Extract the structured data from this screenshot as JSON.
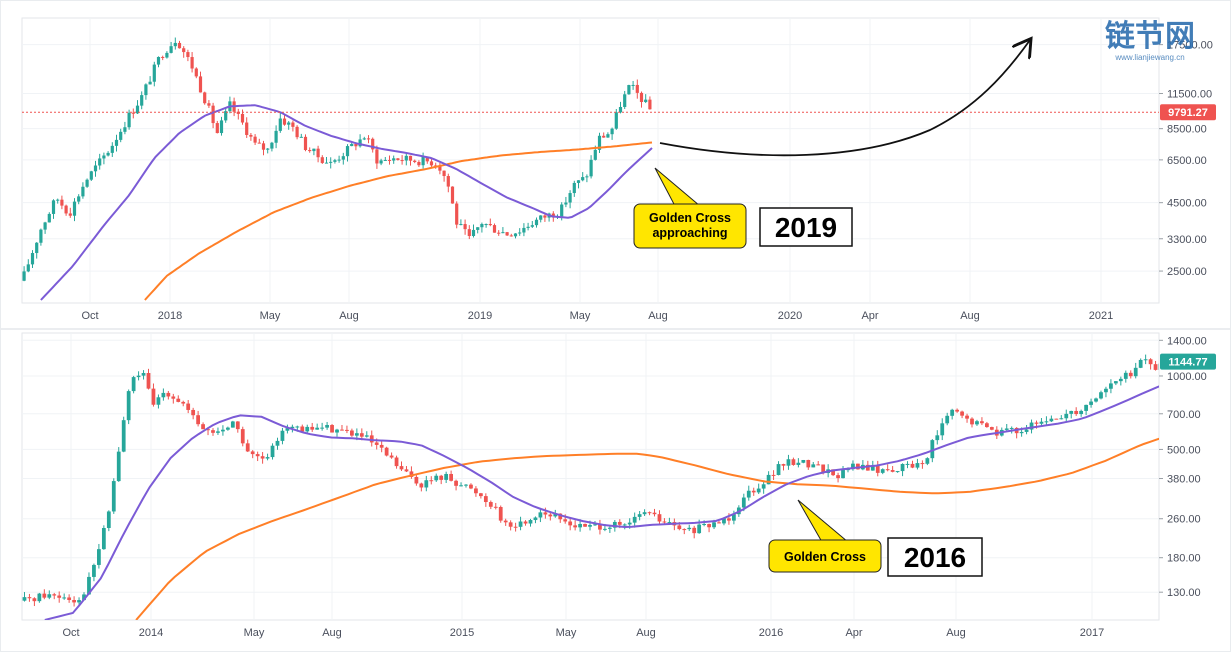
{
  "watermark": {
    "text": "链节网",
    "sub": "www.lianjiewang.cn"
  },
  "chart_data": [
    {
      "type": "candlestick",
      "scale": "log",
      "ylim": [
        1900,
        22000
      ],
      "x_tick_labels": [
        "Oct",
        "2018",
        "May",
        "Aug",
        "2019",
        "May",
        "Aug",
        "2020",
        "Apr",
        "Aug",
        "2021"
      ],
      "y_tick_labels": [
        "17500.00",
        "11500.00",
        "8500.00",
        "6500.00",
        "4500.00",
        "3300.00",
        "2500.00"
      ],
      "y_ticks": [
        17500,
        11500,
        8500,
        6500,
        4500,
        3300,
        2500
      ],
      "last_price_label": "9791.27",
      "last_price": 9791.27,
      "last_price_color": "#ef5350",
      "price_path": [
        {
          "x": 0.0,
          "y": 2300
        },
        {
          "x": 0.03,
          "y": 3600
        },
        {
          "x": 0.055,
          "y": 4700
        },
        {
          "x": 0.075,
          "y": 4100
        },
        {
          "x": 0.1,
          "y": 5400
        },
        {
          "x": 0.14,
          "y": 7200
        },
        {
          "x": 0.17,
          "y": 9500
        },
        {
          "x": 0.19,
          "y": 11200
        },
        {
          "x": 0.22,
          "y": 16000
        },
        {
          "x": 0.245,
          "y": 18500
        },
        {
          "x": 0.27,
          "y": 14500
        },
        {
          "x": 0.29,
          "y": 11000
        },
        {
          "x": 0.31,
          "y": 8200
        },
        {
          "x": 0.33,
          "y": 10400
        },
        {
          "x": 0.35,
          "y": 8900
        },
        {
          "x": 0.37,
          "y": 7400
        },
        {
          "x": 0.39,
          "y": 7100
        },
        {
          "x": 0.41,
          "y": 9300
        },
        {
          "x": 0.43,
          "y": 8600
        },
        {
          "x": 0.45,
          "y": 7300
        },
        {
          "x": 0.47,
          "y": 6700
        },
        {
          "x": 0.49,
          "y": 6300
        },
        {
          "x": 0.52,
          "y": 7200
        },
        {
          "x": 0.545,
          "y": 8000
        },
        {
          "x": 0.565,
          "y": 6400
        },
        {
          "x": 0.59,
          "y": 6600
        },
        {
          "x": 0.62,
          "y": 6500
        },
        {
          "x": 0.65,
          "y": 6400
        },
        {
          "x": 0.66,
          "y": 6300
        },
        {
          "x": 0.675,
          "y": 5400
        },
        {
          "x": 0.69,
          "y": 3800
        },
        {
          "x": 0.71,
          "y": 3300
        },
        {
          "x": 0.73,
          "y": 3800
        },
        {
          "x": 0.75,
          "y": 3600
        },
        {
          "x": 0.77,
          "y": 3450
        },
        {
          "x": 0.79,
          "y": 3550
        },
        {
          "x": 0.81,
          "y": 3800
        },
        {
          "x": 0.83,
          "y": 4000
        },
        {
          "x": 0.855,
          "y": 4200
        },
        {
          "x": 0.875,
          "y": 5200
        },
        {
          "x": 0.895,
          "y": 5600
        },
        {
          "x": 0.915,
          "y": 7800
        },
        {
          "x": 0.935,
          "y": 8300
        },
        {
          "x": 0.95,
          "y": 10500
        },
        {
          "x": 0.965,
          "y": 12300
        },
        {
          "x": 0.985,
          "y": 10900
        },
        {
          "x": 1.0,
          "y": 9791
        }
      ],
      "ma_purple": [
        {
          "x": 0.03,
          "y": 1950
        },
        {
          "x": 0.08,
          "y": 2600
        },
        {
          "x": 0.13,
          "y": 3700
        },
        {
          "x": 0.17,
          "y": 4800
        },
        {
          "x": 0.21,
          "y": 6600
        },
        {
          "x": 0.25,
          "y": 8200
        },
        {
          "x": 0.29,
          "y": 9500
        },
        {
          "x": 0.33,
          "y": 10300
        },
        {
          "x": 0.37,
          "y": 10400
        },
        {
          "x": 0.41,
          "y": 9800
        },
        {
          "x": 0.45,
          "y": 8700
        },
        {
          "x": 0.49,
          "y": 8000
        },
        {
          "x": 0.53,
          "y": 7500
        },
        {
          "x": 0.57,
          "y": 7150
        },
        {
          "x": 0.61,
          "y": 6900
        },
        {
          "x": 0.65,
          "y": 6600
        },
        {
          "x": 0.69,
          "y": 6000
        },
        {
          "x": 0.73,
          "y": 5300
        },
        {
          "x": 0.77,
          "y": 4700
        },
        {
          "x": 0.81,
          "y": 4300
        },
        {
          "x": 0.84,
          "y": 4000
        },
        {
          "x": 0.87,
          "y": 3950
        },
        {
          "x": 0.9,
          "y": 4300
        },
        {
          "x": 0.93,
          "y": 5000
        },
        {
          "x": 0.96,
          "y": 5900
        },
        {
          "x": 1.0,
          "y": 7200
        }
      ],
      "ma_orange": [
        {
          "x": 0.195,
          "y": 1950
        },
        {
          "x": 0.23,
          "y": 2400
        },
        {
          "x": 0.28,
          "y": 2900
        },
        {
          "x": 0.34,
          "y": 3500
        },
        {
          "x": 0.4,
          "y": 4150
        },
        {
          "x": 0.46,
          "y": 4700
        },
        {
          "x": 0.52,
          "y": 5200
        },
        {
          "x": 0.58,
          "y": 5650
        },
        {
          "x": 0.64,
          "y": 6000
        },
        {
          "x": 0.7,
          "y": 6450
        },
        {
          "x": 0.76,
          "y": 6750
        },
        {
          "x": 0.82,
          "y": 6950
        },
        {
          "x": 0.88,
          "y": 7100
        },
        {
          "x": 0.94,
          "y": 7300
        },
        {
          "x": 1.0,
          "y": 7550
        }
      ],
      "annotation": "Golden Cross approaching",
      "year_label": "2019"
    },
    {
      "type": "candlestick",
      "scale": "log",
      "ylim": [
        100,
        1500
      ],
      "x_tick_labels": [
        "Oct",
        "2014",
        "May",
        "Aug",
        "2015",
        "May",
        "Aug",
        "2016",
        "Apr",
        "Aug",
        "2017"
      ],
      "y_tick_labels": [
        "1400.00",
        "1000.00",
        "700.00",
        "500.00",
        "380.00",
        "260.00",
        "180.00",
        "130.00"
      ],
      "y_ticks": [
        1400,
        1000,
        700,
        500,
        380,
        260,
        180,
        130
      ],
      "last_price_label": "1144.77",
      "last_price": 1144.77,
      "last_price_color": "#26a69a",
      "price_path": [
        {
          "x": 0.0,
          "y": 120
        },
        {
          "x": 0.02,
          "y": 127
        },
        {
          "x": 0.04,
          "y": 125
        },
        {
          "x": 0.05,
          "y": 120
        },
        {
          "x": 0.06,
          "y": 150
        },
        {
          "x": 0.075,
          "y": 260
        },
        {
          "x": 0.085,
          "y": 500
        },
        {
          "x": 0.095,
          "y": 950
        },
        {
          "x": 0.105,
          "y": 1050
        },
        {
          "x": 0.115,
          "y": 750
        },
        {
          "x": 0.125,
          "y": 880
        },
        {
          "x": 0.14,
          "y": 780
        },
        {
          "x": 0.155,
          "y": 620
        },
        {
          "x": 0.17,
          "y": 580
        },
        {
          "x": 0.185,
          "y": 650
        },
        {
          "x": 0.2,
          "y": 470
        },
        {
          "x": 0.215,
          "y": 450
        },
        {
          "x": 0.23,
          "y": 640
        },
        {
          "x": 0.245,
          "y": 590
        },
        {
          "x": 0.26,
          "y": 620
        },
        {
          "x": 0.28,
          "y": 600
        },
        {
          "x": 0.3,
          "y": 560
        },
        {
          "x": 0.32,
          "y": 470
        },
        {
          "x": 0.335,
          "y": 400
        },
        {
          "x": 0.35,
          "y": 360
        },
        {
          "x": 0.37,
          "y": 390
        },
        {
          "x": 0.385,
          "y": 360
        },
        {
          "x": 0.4,
          "y": 330
        },
        {
          "x": 0.415,
          "y": 290
        },
        {
          "x": 0.425,
          "y": 240
        },
        {
          "x": 0.44,
          "y": 250
        },
        {
          "x": 0.455,
          "y": 280
        },
        {
          "x": 0.47,
          "y": 260
        },
        {
          "x": 0.49,
          "y": 240
        },
        {
          "x": 0.51,
          "y": 245
        },
        {
          "x": 0.53,
          "y": 240
        },
        {
          "x": 0.545,
          "y": 280
        },
        {
          "x": 0.56,
          "y": 255
        },
        {
          "x": 0.58,
          "y": 230
        },
        {
          "x": 0.6,
          "y": 240
        },
        {
          "x": 0.62,
          "y": 265
        },
        {
          "x": 0.635,
          "y": 330
        },
        {
          "x": 0.65,
          "y": 370
        },
        {
          "x": 0.665,
          "y": 430
        },
        {
          "x": 0.68,
          "y": 450
        },
        {
          "x": 0.7,
          "y": 420
        },
        {
          "x": 0.715,
          "y": 390
        },
        {
          "x": 0.73,
          "y": 430
        },
        {
          "x": 0.75,
          "y": 410
        },
        {
          "x": 0.77,
          "y": 420
        },
        {
          "x": 0.79,
          "y": 440
        },
        {
          "x": 0.8,
          "y": 560
        },
        {
          "x": 0.815,
          "y": 720
        },
        {
          "x": 0.83,
          "y": 650
        },
        {
          "x": 0.845,
          "y": 620
        },
        {
          "x": 0.855,
          "y": 590
        },
        {
          "x": 0.87,
          "y": 600
        },
        {
          "x": 0.885,
          "y": 620
        },
        {
          "x": 0.9,
          "y": 650
        },
        {
          "x": 0.915,
          "y": 700
        },
        {
          "x": 0.93,
          "y": 740
        },
        {
          "x": 0.945,
          "y": 860
        },
        {
          "x": 0.96,
          "y": 960
        },
        {
          "x": 0.975,
          "y": 1050
        },
        {
          "x": 0.985,
          "y": 1180
        },
        {
          "x": 0.995,
          "y": 1050
        },
        {
          "x": 1.0,
          "y": 1145
        }
      ],
      "ma_purple": [
        {
          "x": 0.02,
          "y": 100
        },
        {
          "x": 0.045,
          "y": 107
        },
        {
          "x": 0.07,
          "y": 150
        },
        {
          "x": 0.09,
          "y": 230
        },
        {
          "x": 0.11,
          "y": 340
        },
        {
          "x": 0.13,
          "y": 460
        },
        {
          "x": 0.15,
          "y": 560
        },
        {
          "x": 0.17,
          "y": 640
        },
        {
          "x": 0.19,
          "y": 690
        },
        {
          "x": 0.21,
          "y": 680
        },
        {
          "x": 0.23,
          "y": 620
        },
        {
          "x": 0.25,
          "y": 580
        },
        {
          "x": 0.27,
          "y": 560
        },
        {
          "x": 0.29,
          "y": 555
        },
        {
          "x": 0.31,
          "y": 545
        },
        {
          "x": 0.33,
          "y": 540
        },
        {
          "x": 0.35,
          "y": 520
        },
        {
          "x": 0.37,
          "y": 470
        },
        {
          "x": 0.39,
          "y": 420
        },
        {
          "x": 0.41,
          "y": 370
        },
        {
          "x": 0.43,
          "y": 320
        },
        {
          "x": 0.45,
          "y": 290
        },
        {
          "x": 0.47,
          "y": 270
        },
        {
          "x": 0.49,
          "y": 255
        },
        {
          "x": 0.51,
          "y": 245
        },
        {
          "x": 0.53,
          "y": 240
        },
        {
          "x": 0.55,
          "y": 245
        },
        {
          "x": 0.57,
          "y": 248
        },
        {
          "x": 0.59,
          "y": 250
        },
        {
          "x": 0.61,
          "y": 255
        },
        {
          "x": 0.63,
          "y": 280
        },
        {
          "x": 0.65,
          "y": 320
        },
        {
          "x": 0.67,
          "y": 360
        },
        {
          "x": 0.69,
          "y": 390
        },
        {
          "x": 0.71,
          "y": 410
        },
        {
          "x": 0.73,
          "y": 420
        },
        {
          "x": 0.75,
          "y": 430
        },
        {
          "x": 0.77,
          "y": 450
        },
        {
          "x": 0.79,
          "y": 480
        },
        {
          "x": 0.81,
          "y": 520
        },
        {
          "x": 0.83,
          "y": 560
        },
        {
          "x": 0.85,
          "y": 580
        },
        {
          "x": 0.87,
          "y": 600
        },
        {
          "x": 0.89,
          "y": 620
        },
        {
          "x": 0.91,
          "y": 640
        },
        {
          "x": 0.93,
          "y": 670
        },
        {
          "x": 0.95,
          "y": 730
        },
        {
          "x": 0.97,
          "y": 800
        },
        {
          "x": 0.99,
          "y": 880
        },
        {
          "x": 1.0,
          "y": 920
        }
      ],
      "ma_orange": [
        {
          "x": 0.1,
          "y": 100
        },
        {
          "x": 0.13,
          "y": 145
        },
        {
          "x": 0.16,
          "y": 190
        },
        {
          "x": 0.19,
          "y": 225
        },
        {
          "x": 0.22,
          "y": 255
        },
        {
          "x": 0.25,
          "y": 285
        },
        {
          "x": 0.28,
          "y": 320
        },
        {
          "x": 0.31,
          "y": 360
        },
        {
          "x": 0.34,
          "y": 390
        },
        {
          "x": 0.37,
          "y": 420
        },
        {
          "x": 0.4,
          "y": 445
        },
        {
          "x": 0.43,
          "y": 460
        },
        {
          "x": 0.46,
          "y": 470
        },
        {
          "x": 0.49,
          "y": 475
        },
        {
          "x": 0.52,
          "y": 480
        },
        {
          "x": 0.54,
          "y": 480
        },
        {
          "x": 0.56,
          "y": 465
        },
        {
          "x": 0.59,
          "y": 430
        },
        {
          "x": 0.62,
          "y": 395
        },
        {
          "x": 0.65,
          "y": 370
        },
        {
          "x": 0.68,
          "y": 360
        },
        {
          "x": 0.71,
          "y": 355
        },
        {
          "x": 0.74,
          "y": 345
        },
        {
          "x": 0.77,
          "y": 335
        },
        {
          "x": 0.8,
          "y": 330
        },
        {
          "x": 0.83,
          "y": 335
        },
        {
          "x": 0.86,
          "y": 350
        },
        {
          "x": 0.89,
          "y": 370
        },
        {
          "x": 0.92,
          "y": 400
        },
        {
          "x": 0.95,
          "y": 450
        },
        {
          "x": 0.98,
          "y": 520
        },
        {
          "x": 1.0,
          "y": 560
        }
      ],
      "annotation": "Golden Cross",
      "year_label": "2016"
    }
  ],
  "colors": {
    "candle_up": "#26a69a",
    "candle_down": "#ef5350",
    "ma_purple": "#7b5bd6",
    "ma_orange": "#ff7f27",
    "callout_fill": "#ffe600"
  },
  "icons": [
    "up-arrow-icon"
  ]
}
